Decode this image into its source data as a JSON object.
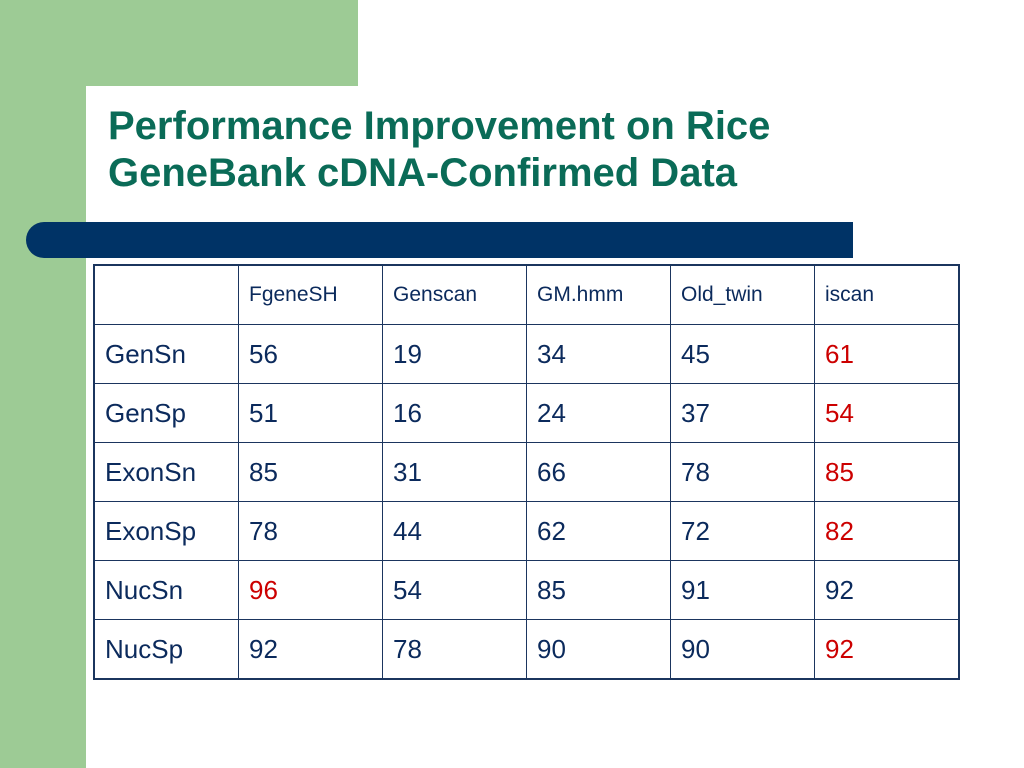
{
  "slide": {
    "title_line1": "Performance Improvement on Rice",
    "title_line2": "GeneBank cDNA-Confirmed Data"
  },
  "table": {
    "headers": [
      "",
      "FgeneSH",
      "Genscan",
      "GM.hmm",
      "Old_twin",
      "iscan"
    ],
    "rows": [
      {
        "label": "GenSn",
        "values": [
          "56",
          "19",
          "34",
          "45",
          "61"
        ],
        "highlight": [
          4
        ]
      },
      {
        "label": "GenSp",
        "values": [
          "51",
          "16",
          "24",
          "37",
          "54"
        ],
        "highlight": [
          4
        ]
      },
      {
        "label": "ExonSn",
        "values": [
          "85",
          "31",
          "66",
          "78",
          "85"
        ],
        "highlight": [
          4
        ]
      },
      {
        "label": "ExonSp",
        "values": [
          "78",
          "44",
          "62",
          "72",
          "82"
        ],
        "highlight": [
          4
        ]
      },
      {
        "label": "NucSn",
        "values": [
          "96",
          "54",
          "85",
          "91",
          "92"
        ],
        "highlight": [
          0
        ]
      },
      {
        "label": "NucSp",
        "values": [
          "92",
          "78",
          "90",
          "90",
          "92"
        ],
        "highlight": [
          4
        ]
      }
    ]
  },
  "colors": {
    "title": "#0a6b57",
    "accent_green": "#9dcb95",
    "accent_navy": "#003366",
    "highlight": "#cc0000",
    "text": "#0b2a5c"
  }
}
